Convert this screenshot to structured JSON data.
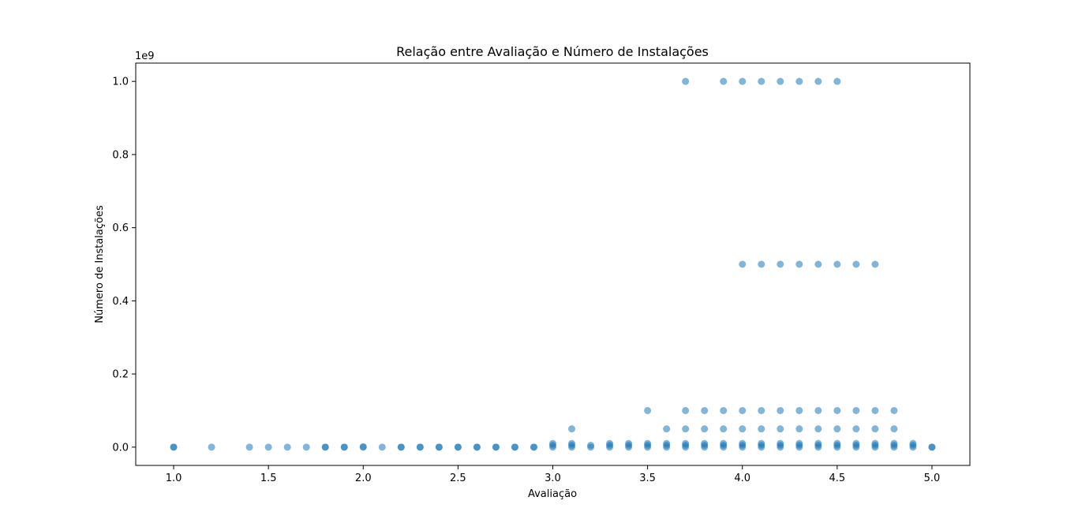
{
  "chart_data": {
    "type": "scatter",
    "title": "Relação entre Avaliação e Número de Instalações",
    "xlabel": "Avaliação",
    "ylabel": "Número de Instalações",
    "y_offset_label": "1e9",
    "xlim": [
      0.8,
      5.2
    ],
    "ylim": [
      -0.05,
      1.05
    ],
    "xticks": [
      1.0,
      1.5,
      2.0,
      2.5,
      3.0,
      3.5,
      4.0,
      4.5,
      5.0
    ],
    "xtick_labels": [
      "1.0",
      "1.5",
      "2.0",
      "2.5",
      "3.0",
      "3.5",
      "4.0",
      "4.5",
      "5.0"
    ],
    "yticks": [
      0.0,
      0.2,
      0.4,
      0.6,
      0.8,
      1.0
    ],
    "ytick_labels": [
      "0.0",
      "0.2",
      "0.4",
      "0.6",
      "0.8",
      "1.0"
    ],
    "grid": false,
    "marker_color": "#1f77b4",
    "marker_alpha": 0.55,
    "points": [
      [
        1.0,
        0.0
      ],
      [
        1.0,
        0.0
      ],
      [
        1.2,
        0.0
      ],
      [
        1.4,
        0.0
      ],
      [
        1.5,
        0.0
      ],
      [
        1.6,
        0.0
      ],
      [
        1.7,
        0.0
      ],
      [
        1.8,
        0.0
      ],
      [
        1.8,
        0.0
      ],
      [
        1.9,
        0.0
      ],
      [
        1.9,
        0.0
      ],
      [
        2.0,
        0.0
      ],
      [
        2.0,
        0.001
      ],
      [
        2.1,
        0.0
      ],
      [
        2.2,
        0.0
      ],
      [
        2.2,
        0.0
      ],
      [
        2.3,
        0.0
      ],
      [
        2.3,
        0.0
      ],
      [
        2.4,
        0.0
      ],
      [
        2.4,
        0.0
      ],
      [
        2.5,
        0.0
      ],
      [
        2.5,
        0.0
      ],
      [
        2.6,
        0.0
      ],
      [
        2.6,
        0.0
      ],
      [
        2.7,
        0.0
      ],
      [
        2.7,
        0.0
      ],
      [
        2.8,
        0.0
      ],
      [
        2.8,
        0.0
      ],
      [
        2.9,
        0.0
      ],
      [
        2.9,
        0.0
      ],
      [
        3.0,
        0.0
      ],
      [
        3.0,
        0.005
      ],
      [
        3.0,
        0.01
      ],
      [
        3.1,
        0.0
      ],
      [
        3.1,
        0.005
      ],
      [
        3.1,
        0.01
      ],
      [
        3.1,
        0.05
      ],
      [
        3.2,
        0.0
      ],
      [
        3.2,
        0.005
      ],
      [
        3.3,
        0.0
      ],
      [
        3.3,
        0.005
      ],
      [
        3.3,
        0.01
      ],
      [
        3.4,
        0.0
      ],
      [
        3.4,
        0.005
      ],
      [
        3.4,
        0.01
      ],
      [
        3.5,
        0.0
      ],
      [
        3.5,
        0.005
      ],
      [
        3.5,
        0.01
      ],
      [
        3.5,
        0.1
      ],
      [
        3.6,
        0.0
      ],
      [
        3.6,
        0.005
      ],
      [
        3.6,
        0.01
      ],
      [
        3.6,
        0.05
      ],
      [
        3.7,
        0.0
      ],
      [
        3.7,
        0.005
      ],
      [
        3.7,
        0.01
      ],
      [
        3.7,
        0.05
      ],
      [
        3.7,
        0.1
      ],
      [
        3.7,
        1.0
      ],
      [
        3.8,
        0.0
      ],
      [
        3.8,
        0.005
      ],
      [
        3.8,
        0.01
      ],
      [
        3.8,
        0.05
      ],
      [
        3.8,
        0.1
      ],
      [
        3.9,
        0.0
      ],
      [
        3.9,
        0.005
      ],
      [
        3.9,
        0.01
      ],
      [
        3.9,
        0.05
      ],
      [
        3.9,
        0.1
      ],
      [
        3.9,
        1.0
      ],
      [
        4.0,
        0.0
      ],
      [
        4.0,
        0.005
      ],
      [
        4.0,
        0.01
      ],
      [
        4.0,
        0.05
      ],
      [
        4.0,
        0.1
      ],
      [
        4.0,
        0.5
      ],
      [
        4.0,
        1.0
      ],
      [
        4.1,
        0.0
      ],
      [
        4.1,
        0.005
      ],
      [
        4.1,
        0.01
      ],
      [
        4.1,
        0.05
      ],
      [
        4.1,
        0.1
      ],
      [
        4.1,
        0.5
      ],
      [
        4.1,
        1.0
      ],
      [
        4.2,
        0.0
      ],
      [
        4.2,
        0.005
      ],
      [
        4.2,
        0.01
      ],
      [
        4.2,
        0.05
      ],
      [
        4.2,
        0.1
      ],
      [
        4.2,
        0.5
      ],
      [
        4.2,
        1.0
      ],
      [
        4.3,
        0.0
      ],
      [
        4.3,
        0.005
      ],
      [
        4.3,
        0.01
      ],
      [
        4.3,
        0.05
      ],
      [
        4.3,
        0.1
      ],
      [
        4.3,
        0.5
      ],
      [
        4.3,
        1.0
      ],
      [
        4.4,
        0.0
      ],
      [
        4.4,
        0.005
      ],
      [
        4.4,
        0.01
      ],
      [
        4.4,
        0.05
      ],
      [
        4.4,
        0.1
      ],
      [
        4.4,
        0.5
      ],
      [
        4.4,
        1.0
      ],
      [
        4.5,
        0.0
      ],
      [
        4.5,
        0.005
      ],
      [
        4.5,
        0.01
      ],
      [
        4.5,
        0.05
      ],
      [
        4.5,
        0.1
      ],
      [
        4.5,
        0.5
      ],
      [
        4.5,
        1.0
      ],
      [
        4.6,
        0.0
      ],
      [
        4.6,
        0.005
      ],
      [
        4.6,
        0.01
      ],
      [
        4.6,
        0.05
      ],
      [
        4.6,
        0.1
      ],
      [
        4.6,
        0.5
      ],
      [
        4.7,
        0.0
      ],
      [
        4.7,
        0.005
      ],
      [
        4.7,
        0.01
      ],
      [
        4.7,
        0.05
      ],
      [
        4.7,
        0.1
      ],
      [
        4.7,
        0.5
      ],
      [
        4.8,
        0.0
      ],
      [
        4.8,
        0.005
      ],
      [
        4.8,
        0.01
      ],
      [
        4.8,
        0.05
      ],
      [
        4.8,
        0.1
      ],
      [
        4.9,
        0.0
      ],
      [
        4.9,
        0.005
      ],
      [
        4.9,
        0.01
      ],
      [
        5.0,
        0.0
      ],
      [
        5.0,
        0.0
      ]
    ]
  }
}
